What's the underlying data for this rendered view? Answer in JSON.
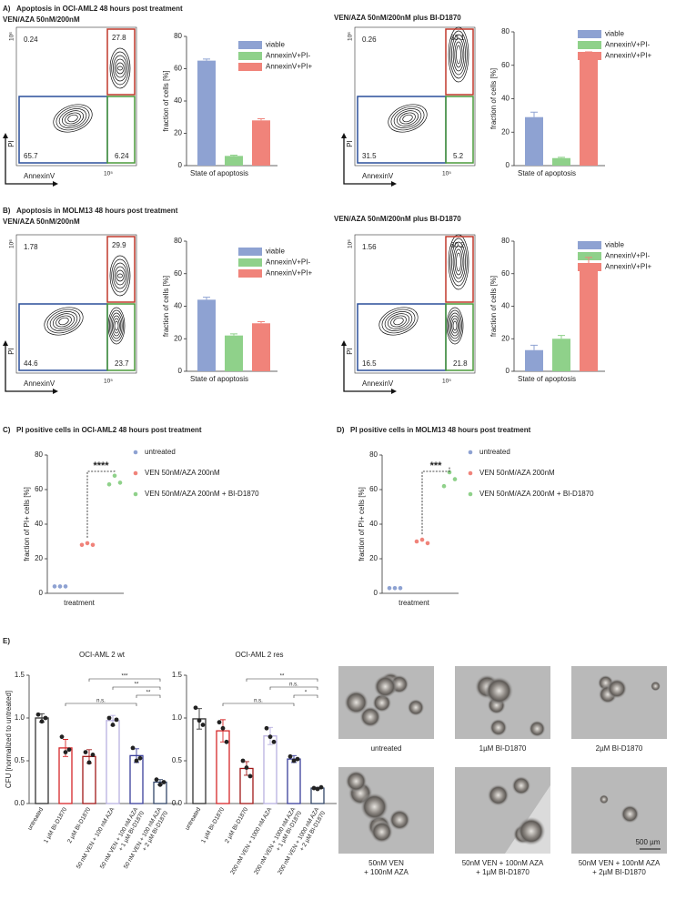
{
  "sections": [
    {
      "label": "A)",
      "title": "Apoptosis in OCI-AML2 48 hours post treatment",
      "left_subtitle": "VEN/AZA 50nM/200nM",
      "right_subtitle": "VEN/AZA 50nM/200nM plus BI-D1870"
    },
    {
      "label": "B)",
      "title": "Apoptosis in MOLM13 48 hours post treatment",
      "left_subtitle": "VEN/AZA 50nM/200nM",
      "right_subtitle": "VEN/AZA 50nM/200nM plus BI-D1870"
    },
    {
      "label": "C)",
      "title": "PI positive cells in OCI-AML2 48 hours post treatment"
    },
    {
      "label": "D)",
      "title": "PI positive cells in MOLM13 48 hours post treatment"
    },
    {
      "label": "E)"
    }
  ],
  "flow_plots": [
    {
      "x_label": "AnnexinV",
      "y_label": "PI",
      "x_tick": "10⁵",
      "y_tick": "10⁶",
      "quadrants": [
        0.24,
        27.8,
        65.7,
        6.24
      ]
    },
    {
      "x_label": "AnnexinV",
      "y_label": "PI",
      "x_tick": "10⁵",
      "y_tick": "10⁶",
      "quadrants": [
        0.26,
        63.1,
        31.5,
        5.2
      ]
    },
    {
      "x_label": "AnnexinV",
      "y_label": "PI",
      "x_tick": "10⁵",
      "y_tick": "10⁶",
      "quadrants": [
        1.78,
        29.9,
        44.6,
        23.7
      ]
    },
    {
      "x_label": "AnnexinV",
      "y_label": "PI",
      "x_tick": "10⁵",
      "y_tick": "10⁶",
      "quadrants": [
        1.56,
        60.2,
        16.5,
        21.8
      ]
    }
  ],
  "chart_data": [
    {
      "type": "bar",
      "x_label": "State of apoptosis",
      "y_label": "fraction of cells [%]",
      "ylim": [
        0,
        80
      ],
      "yticks": [
        0,
        20,
        40,
        60,
        80
      ],
      "series": [
        {
          "name": "viable",
          "color": "#8ea2d2",
          "values": [
            65
          ],
          "errors": [
            1
          ]
        },
        {
          "name": "AnnexinV+PI-",
          "color": "#8fd18a",
          "values": [
            6
          ],
          "errors": [
            0.5
          ]
        },
        {
          "name": "AnnexinV+PI+",
          "color": "#f0837a",
          "values": [
            28
          ],
          "errors": [
            1
          ]
        }
      ]
    },
    {
      "type": "bar",
      "x_label": "State of apoptosis",
      "y_label": "fraction of cells [%]",
      "ylim": [
        0,
        80
      ],
      "yticks": [
        0,
        20,
        40,
        60,
        80
      ],
      "series": [
        {
          "name": "viable",
          "color": "#8ea2d2",
          "values": [
            29
          ],
          "errors": [
            3
          ]
        },
        {
          "name": "AnnexinV+PI-",
          "color": "#8fd18a",
          "values": [
            4.5
          ],
          "errors": [
            0.5
          ]
        },
        {
          "name": "AnnexinV+PI+",
          "color": "#f0837a",
          "values": [
            65
          ],
          "errors": [
            3
          ]
        }
      ]
    },
    {
      "type": "bar",
      "x_label": "State of apoptosis",
      "y_label": "fraction of cells [%]",
      "ylim": [
        0,
        80
      ],
      "yticks": [
        0,
        20,
        40,
        60,
        80
      ],
      "series": [
        {
          "name": "viable",
          "color": "#8ea2d2",
          "values": [
            44
          ],
          "errors": [
            1.5
          ]
        },
        {
          "name": "AnnexinV+PI-",
          "color": "#8fd18a",
          "values": [
            22
          ],
          "errors": [
            1
          ]
        },
        {
          "name": "AnnexinV+PI+",
          "color": "#f0837a",
          "values": [
            29.5
          ],
          "errors": [
            1
          ]
        }
      ]
    },
    {
      "type": "bar",
      "x_label": "State of apoptosis",
      "y_label": "fraction of cells [%]",
      "ylim": [
        0,
        80
      ],
      "yticks": [
        0,
        20,
        40,
        60,
        80
      ],
      "series": [
        {
          "name": "viable",
          "color": "#8ea2d2",
          "values": [
            13
          ],
          "errors": [
            3
          ]
        },
        {
          "name": "AnnexinV+PI-",
          "color": "#8fd18a",
          "values": [
            20
          ],
          "errors": [
            2
          ]
        },
        {
          "name": "AnnexinV+PI+",
          "color": "#f0837a",
          "values": [
            65
          ],
          "errors": [
            5
          ]
        }
      ]
    },
    {
      "type": "dot",
      "x_label": "treatment",
      "y_label": "fraction of PI+ cells [%]",
      "ylim": [
        0,
        80
      ],
      "yticks": [
        0,
        20,
        40,
        60,
        80
      ],
      "significance": "****",
      "series": [
        {
          "name": "untreated",
          "color": "#8ea2d2",
          "values": [
            4,
            4,
            4
          ]
        },
        {
          "name": "VEN 50nM/AZA 200nM",
          "color": "#f0837a",
          "values": [
            28,
            29,
            28
          ]
        },
        {
          "name": "VEN 50nM/AZA 200nM + BI-D1870",
          "color": "#8fd18a",
          "values": [
            63,
            68,
            64
          ]
        }
      ]
    },
    {
      "type": "dot",
      "x_label": "treatment",
      "y_label": "fraction of PI+ cells [%]",
      "ylim": [
        0,
        80
      ],
      "yticks": [
        0,
        20,
        40,
        60,
        80
      ],
      "significance": "***",
      "series": [
        {
          "name": "untreated",
          "color": "#8ea2d2",
          "values": [
            3,
            3,
            3
          ]
        },
        {
          "name": "VEN 50nM/AZA 200nM",
          "color": "#f0837a",
          "values": [
            30,
            31,
            29
          ]
        },
        {
          "name": "VEN 50nM/AZA 200nM + BI-D1870",
          "color": "#8fd18a",
          "values": [
            62,
            70,
            66
          ]
        }
      ]
    },
    {
      "type": "cfu",
      "title": "OCI-AML 2 wt",
      "y_label": "CFU [normalized to untreated]",
      "ylim": [
        0,
        1.5
      ],
      "yticks": [
        {
          "value": 0,
          "label": "0.0"
        },
        {
          "value": 0.5,
          "label": "0.5"
        },
        {
          "value": 1,
          "label": "1.0"
        },
        {
          "value": 1.5,
          "label": "1.5"
        }
      ],
      "categories": [
        [
          "untreated"
        ],
        [
          "1 µM BI-D1870"
        ],
        [
          "2 µM BI-D1870"
        ],
        [
          "50 nM VEN + 100 nM AZA"
        ],
        [
          "50 nM VEN + 100 nM AZA",
          "+ 1 µM BI-D1870"
        ],
        [
          "50 nM VEN + 100 nM AZA",
          "+ 2 µM BI-D1870"
        ]
      ],
      "colors": [
        "#333333",
        "#d62728",
        "#a01818",
        "#b8b0e0",
        "#3a3f9a",
        "#34476a"
      ],
      "values": [
        1.0,
        0.65,
        0.55,
        0.97,
        0.56,
        0.25
      ],
      "errors": [
        0.05,
        0.1,
        0.08,
        0.06,
        0.08,
        0.03
      ],
      "points": [
        [
          1.04,
          0.96,
          1.0
        ],
        [
          0.78,
          0.6,
          0.63
        ],
        [
          0.6,
          0.48,
          0.57
        ],
        [
          1.0,
          0.92,
          0.98
        ],
        [
          0.65,
          0.5,
          0.53
        ],
        [
          0.28,
          0.22,
          0.25
        ]
      ],
      "significance": [
        "***",
        "**",
        "**",
        "n.s."
      ]
    },
    {
      "type": "cfu",
      "title": "OCI-AML 2 res",
      "ylim": [
        0,
        1.5
      ],
      "yticks": [
        {
          "value": 0,
          "label": "0.0"
        },
        {
          "value": 0.5,
          "label": "0.5"
        },
        {
          "value": 1,
          "label": "1.0"
        },
        {
          "value": 1.5,
          "label": "1.5"
        }
      ],
      "categories": [
        [
          "untreated"
        ],
        [
          "1 µM BI-D1870"
        ],
        [
          "2 µM BI-D1870"
        ],
        [
          "200 nM VEN + 1000 nM AZA"
        ],
        [
          "200 nM VEN + 1000 nM AZA",
          "+ 1 µM BI-D1870"
        ],
        [
          "200 nM VEN + 1000 nM AZA",
          "+ 2 µM BI-D1870"
        ]
      ],
      "colors": [
        "#333333",
        "#d62728",
        "#a01818",
        "#b8b0e0",
        "#3a3f9a",
        "#34476a"
      ],
      "values": [
        0.99,
        0.85,
        0.41,
        0.79,
        0.52,
        0.18
      ],
      "errors": [
        0.12,
        0.13,
        0.08,
        0.1,
        0.04,
        0.01
      ],
      "points": [
        [
          1.12,
          0.97,
          0.92
        ],
        [
          0.95,
          0.88,
          0.72
        ],
        [
          0.5,
          0.42,
          0.32
        ],
        [
          0.88,
          0.78,
          0.72
        ],
        [
          0.55,
          0.5,
          0.52
        ],
        [
          0.18,
          0.17,
          0.19
        ]
      ],
      "significance": [
        "**",
        "n.s.",
        "*",
        "n.s."
      ]
    }
  ],
  "micrographs": {
    "captions": [
      [
        "untreated"
      ],
      [
        "1µM BI-D1870"
      ],
      [
        "2µM BI-D1870"
      ],
      [
        "50nM VEN",
        "+ 100nM AZA"
      ],
      [
        "50nM VEN + 100nM AZA",
        "+ 1µM BI-D1870"
      ],
      [
        "50nM VEN + 100nM AZA",
        "+ 2µM BI-D1870"
      ]
    ],
    "scale_bar": "500 µm"
  }
}
